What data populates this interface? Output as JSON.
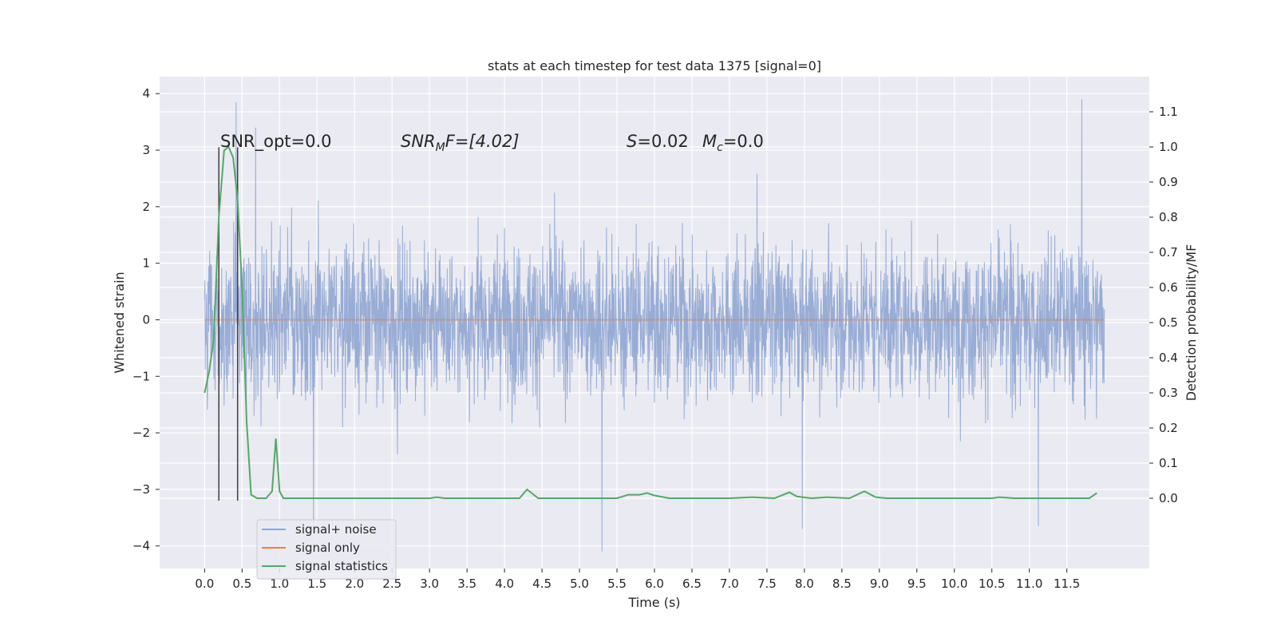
{
  "chart_data": {
    "type": "line",
    "title": "stats at each timestep for test data 1375 [signal=0]",
    "xlabel": "Time (s)",
    "ylabel_left": "Whitened strain",
    "ylabel_right": "Detection probability/MF",
    "x_range": [
      -0.6,
      12.6
    ],
    "y_left_range": [
      -4.4,
      4.3
    ],
    "y_right_range": [
      -0.2,
      1.2
    ],
    "x_ticks": [
      0.0,
      0.5,
      1.0,
      1.5,
      2.0,
      2.5,
      3.0,
      3.5,
      4.0,
      4.5,
      5.0,
      5.5,
      6.0,
      6.5,
      7.0,
      7.5,
      8.0,
      8.5,
      9.0,
      9.5,
      10.0,
      10.5,
      11.0,
      11.5
    ],
    "x_tick_labels": [
      "0.0",
      "0.5",
      "1.0",
      "1.5",
      "2.0",
      "2.5",
      "3.0",
      "3.5",
      "4.0",
      "4.5",
      "5.0",
      "5.5",
      "6.0",
      "6.5",
      "7.0",
      "7.5",
      "8.0",
      "8.5",
      "9.0",
      "9.5",
      "10.0",
      "10.5",
      "11.0",
      "11.5"
    ],
    "y_left_ticks": [
      -4,
      -3,
      -2,
      -1,
      0,
      1,
      2,
      3,
      4
    ],
    "y_left_tick_labels": [
      "−4",
      "−3",
      "−2",
      "−1",
      "0",
      "1",
      "2",
      "3",
      "4"
    ],
    "y_right_ticks": [
      0.0,
      0.1,
      0.2,
      0.3,
      0.4,
      0.5,
      0.6,
      0.7,
      0.8,
      0.9,
      1.0,
      1.1
    ],
    "y_right_tick_labels": [
      "0.0",
      "0.1",
      "0.2",
      "0.3",
      "0.4",
      "0.5",
      "0.6",
      "0.7",
      "0.8",
      "0.9",
      "1.0",
      "1.1"
    ],
    "grid": true,
    "legend_position": "lower-left",
    "annotations": {
      "snr_opt": "SNR_opt=0.0",
      "snr_mf_main": "SNR",
      "snr_mf_sub": "M",
      "snr_mf_rest": "F=[4.02]",
      "s_main": "S",
      "s_rest": "=0.02",
      "mc_main": "M",
      "mc_sub": "c",
      "mc_rest": "=0.0"
    },
    "markers": [
      {
        "x": 0.19,
        "y_left": [
          -3.2,
          3.05
        ]
      },
      {
        "x": 0.44,
        "y_left": [
          -3.2,
          3.05
        ]
      }
    ],
    "series": [
      {
        "name": "signal+ noise",
        "color": "#8fa5d1",
        "axis": "left",
        "time_start": 0.0,
        "time_end": 12.0,
        "envelope_typical": 1.7,
        "peaks": [
          {
            "x": 0.42,
            "y": 3.85
          },
          {
            "x": 0.68,
            "y": 3.4
          },
          {
            "x": 11.7,
            "y": 3.9
          },
          {
            "x": 5.3,
            "y": -4.1
          },
          {
            "x": 1.45,
            "y": -3.6
          },
          {
            "x": 7.97,
            "y": -3.7
          },
          {
            "x": 11.12,
            "y": -3.65
          }
        ]
      },
      {
        "name": "signal only",
        "color": "#dd8452",
        "axis": "left",
        "x": [
          0.0,
          12.0
        ],
        "y": [
          0.0,
          0.0
        ]
      },
      {
        "name": "signal statistics",
        "color": "#55a868",
        "axis": "right",
        "x": [
          0.0,
          0.06,
          0.12,
          0.19,
          0.26,
          0.32,
          0.38,
          0.44,
          0.5,
          0.56,
          0.62,
          0.7,
          0.82,
          0.9,
          0.95,
          1.0,
          1.05,
          1.2,
          1.5,
          1.8,
          2.0,
          2.5,
          3.0,
          3.1,
          3.2,
          3.5,
          4.0,
          4.2,
          4.3,
          4.45,
          4.6,
          5.0,
          5.5,
          5.65,
          5.8,
          5.9,
          6.0,
          6.2,
          6.5,
          7.0,
          7.3,
          7.6,
          7.8,
          7.9,
          8.1,
          8.3,
          8.6,
          8.8,
          8.95,
          9.1,
          9.5,
          10.0,
          10.5,
          10.6,
          10.8,
          11.0,
          11.3,
          11.5,
          11.8,
          11.9
        ],
        "y": [
          0.3,
          0.36,
          0.45,
          0.8,
          0.99,
          1.0,
          0.97,
          0.85,
          0.6,
          0.22,
          0.01,
          0.0,
          0.0,
          0.02,
          0.17,
          0.02,
          0.0,
          0.0,
          0.0,
          0.0,
          0.0,
          0.0,
          0.0,
          0.003,
          0.0,
          0.0,
          0.0,
          0.0,
          0.025,
          0.0,
          0.0,
          0.0,
          0.0,
          0.01,
          0.01,
          0.015,
          0.008,
          0.0,
          0.0,
          0.0,
          0.003,
          0.0,
          0.017,
          0.005,
          0.0,
          0.003,
          0.0,
          0.02,
          0.003,
          0.0,
          0.0,
          0.0,
          0.0,
          0.003,
          0.0,
          0.0,
          0.0,
          0.0,
          0.0,
          0.015
        ]
      }
    ]
  }
}
